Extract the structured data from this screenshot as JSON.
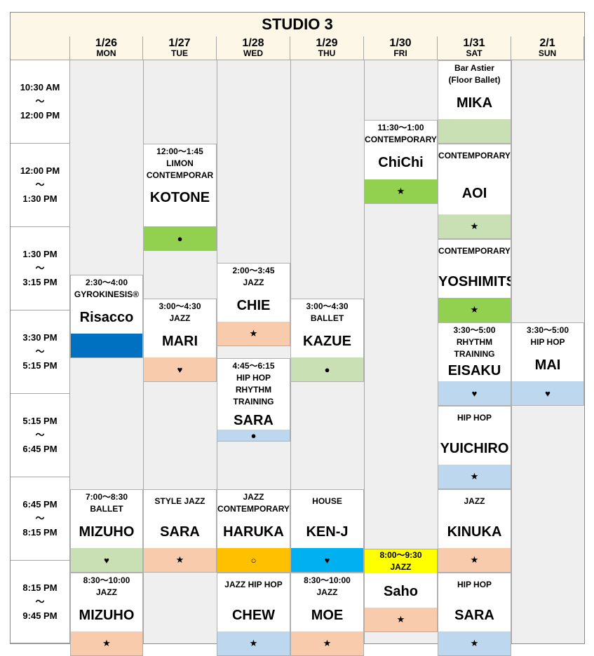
{
  "studio_title": "STUDIO 3",
  "days": [
    {
      "date": "1/26",
      "wd": "MON"
    },
    {
      "date": "1/27",
      "wd": "TUE"
    },
    {
      "date": "1/28",
      "wd": "WED"
    },
    {
      "date": "1/29",
      "wd": "THU"
    },
    {
      "date": "1/30",
      "wd": "FRI"
    },
    {
      "date": "1/31",
      "wd": "SAT"
    },
    {
      "date": "2/1",
      "wd": "SUN"
    }
  ],
  "slots": [
    {
      "start": "10:30 AM",
      "sep": "～",
      "end": "12:00 PM"
    },
    {
      "start": "12:00 PM",
      "sep": "～",
      "end": "1:30 PM"
    },
    {
      "start": "1:30 PM",
      "sep": "～",
      "end": "3:15 PM"
    },
    {
      "start": "3:30 PM",
      "sep": "～",
      "end": "5:15 PM"
    },
    {
      "start": "5:15 PM",
      "sep": "～",
      "end": "6:45 PM"
    },
    {
      "start": "6:45 PM",
      "sep": "～",
      "end": "8:15 PM"
    },
    {
      "start": "8:15 PM",
      "sep": "～",
      "end": "9:45 PM"
    }
  ],
  "classes": [
    {
      "time": "",
      "genre": "Bar Astier\n(Floor Ballet)",
      "instructor": "MIKA",
      "symbol": "",
      "bar_color": "#c8e0b4"
    },
    {
      "time": "11:30～1:00",
      "genre": "CONTEMPORARY",
      "instructor": "ChiChi",
      "symbol": "★",
      "bar_color": "#92d050"
    },
    {
      "time": "12:00～1:45",
      "genre": "LIMON\nCONTEMPORAR",
      "instructor": "KOTONE",
      "symbol": "●",
      "bar_color": "#92d050"
    },
    {
      "time": "",
      "genre": "CONTEMPORARY",
      "instructor": "AOI",
      "symbol": "★",
      "bar_color": "#c8e0b4"
    },
    {
      "time": "2:30～4:00",
      "genre": "GYROKINESIS®",
      "instructor": "Risacco",
      "symbol": "",
      "bar_color": "#0070c0"
    },
    {
      "time": "2:00～3:45",
      "genre": "JAZZ",
      "instructor": "CHIE",
      "symbol": "★",
      "bar_color": "#f8cbad"
    },
    {
      "time": "",
      "genre": "CONTEMPORARY",
      "instructor": "YOSHIMITSU",
      "symbol": "★",
      "bar_color": "#92d050"
    },
    {
      "time": "3:00～4:30",
      "genre": "JAZZ",
      "instructor": "MARI",
      "symbol": "♥",
      "bar_color": "#f8cbad"
    },
    {
      "time": "3:00～4:30",
      "genre": "BALLET",
      "instructor": "KAZUE",
      "symbol": "●",
      "bar_color": "#c8e0b4"
    },
    {
      "time": "4:45～6:15",
      "genre": "HIP HOP\nRHYTHM\nTRAINING",
      "instructor": "SARA",
      "symbol": "●",
      "bar_color": "#bdd7ee"
    },
    {
      "time": "3:30～5:00",
      "genre": "RHYTHM\nTRAINING",
      "instructor": "EISAKU",
      "symbol": "♥",
      "bar_color": "#bdd7ee"
    },
    {
      "time": "3:30～5:00",
      "genre": "HIP HOP",
      "instructor": "MAI",
      "symbol": "♥",
      "bar_color": "#bdd7ee"
    },
    {
      "time": "",
      "genre": "HIP HOP",
      "instructor": "YUICHIRO",
      "symbol": "★",
      "bar_color": "#bdd7ee"
    },
    {
      "time": "7:00～8:30",
      "genre": "BALLET",
      "instructor": "MIZUHO",
      "symbol": "♥",
      "bar_color": "#c8e0b4"
    },
    {
      "time": "",
      "genre": "STYLE JAZZ",
      "instructor": "SARA",
      "symbol": "★",
      "bar_color": "#f8cbad"
    },
    {
      "time": "",
      "genre": "JAZZ\nCONTEMPORARY",
      "instructor": "HARUKA",
      "symbol": "○",
      "bar_color": "#ffc000"
    },
    {
      "time": "",
      "genre": "HOUSE",
      "instructor": "KEN-J",
      "symbol": "♥",
      "bar_color": "#00b0f0"
    },
    {
      "time": "",
      "genre": "JAZZ",
      "instructor": "KINUKA",
      "symbol": "★",
      "bar_color": "#f8cbad"
    },
    {
      "time": "8:00～9:30",
      "genre": "JAZZ",
      "instructor": "Saho",
      "symbol": "★",
      "bar_color": "#f8cbad",
      "head_color": "#ffff00"
    },
    {
      "time": "8:30～10:00",
      "genre": "JAZZ",
      "instructor": "MIZUHO",
      "symbol": "★",
      "bar_color": "#f8cbad"
    },
    {
      "time": "",
      "genre": "JAZZ HIP HOP",
      "instructor": "CHEW",
      "symbol": "★",
      "bar_color": "#bdd7ee"
    },
    {
      "time": "8:30～10:00",
      "genre": "JAZZ",
      "instructor": "MOE",
      "symbol": "★",
      "bar_color": "#f8cbad"
    },
    {
      "time": "",
      "genre": "HIP HOP",
      "instructor": "SARA",
      "symbol": "★",
      "bar_color": "#bdd7ee"
    }
  ]
}
